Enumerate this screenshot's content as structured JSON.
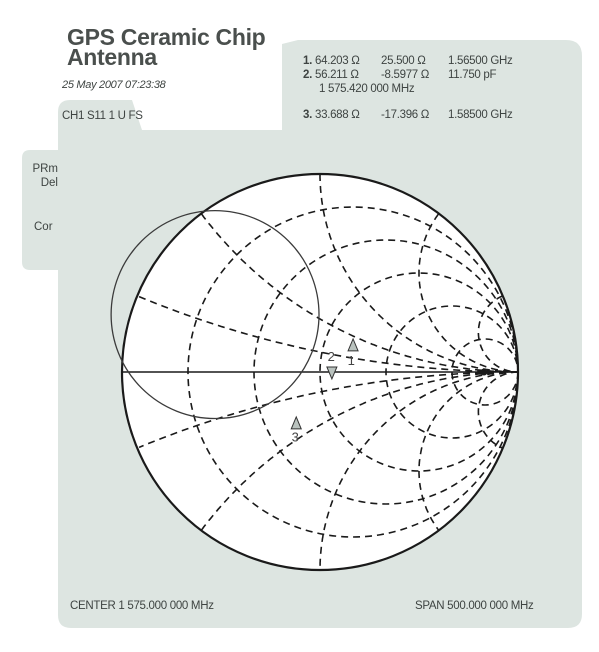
{
  "header": {
    "title_line1": "GPS Ceramic Chip",
    "title_line2": "Antenna",
    "timestamp": "25 May 2007 07:23:38",
    "channel": "CH1 S11 1 U FS"
  },
  "side_labels": [
    "PRm",
    "Del",
    "Cor"
  ],
  "markers": [
    {
      "number": "1.",
      "resistance": "64.203 Ω",
      "reactance": "25.500 Ω",
      "extra": "1.56500 GHz",
      "symbol": "1"
    },
    {
      "number": "2.",
      "resistance": "56.211 Ω",
      "reactance": "-8.5977 Ω",
      "extra": "11.750 pF",
      "frequency_line": "1 575.420 000 MHz",
      "symbol": "2"
    },
    {
      "number": "3.",
      "resistance": "33.688 Ω",
      "reactance": "-17.396 Ω",
      "extra": "1.58500 GHz",
      "symbol": "3"
    }
  ],
  "footer": {
    "center": "CENTER 1 575.000 000 MHz",
    "span": "SPAN 500.000 000 MHz"
  },
  "colors": {
    "panel": "#dde5e1",
    "plot_background": "#ffffff",
    "grid": "#1a1a1a",
    "text": "#3a3f3d",
    "marker_fill": "#b9c2be"
  }
}
